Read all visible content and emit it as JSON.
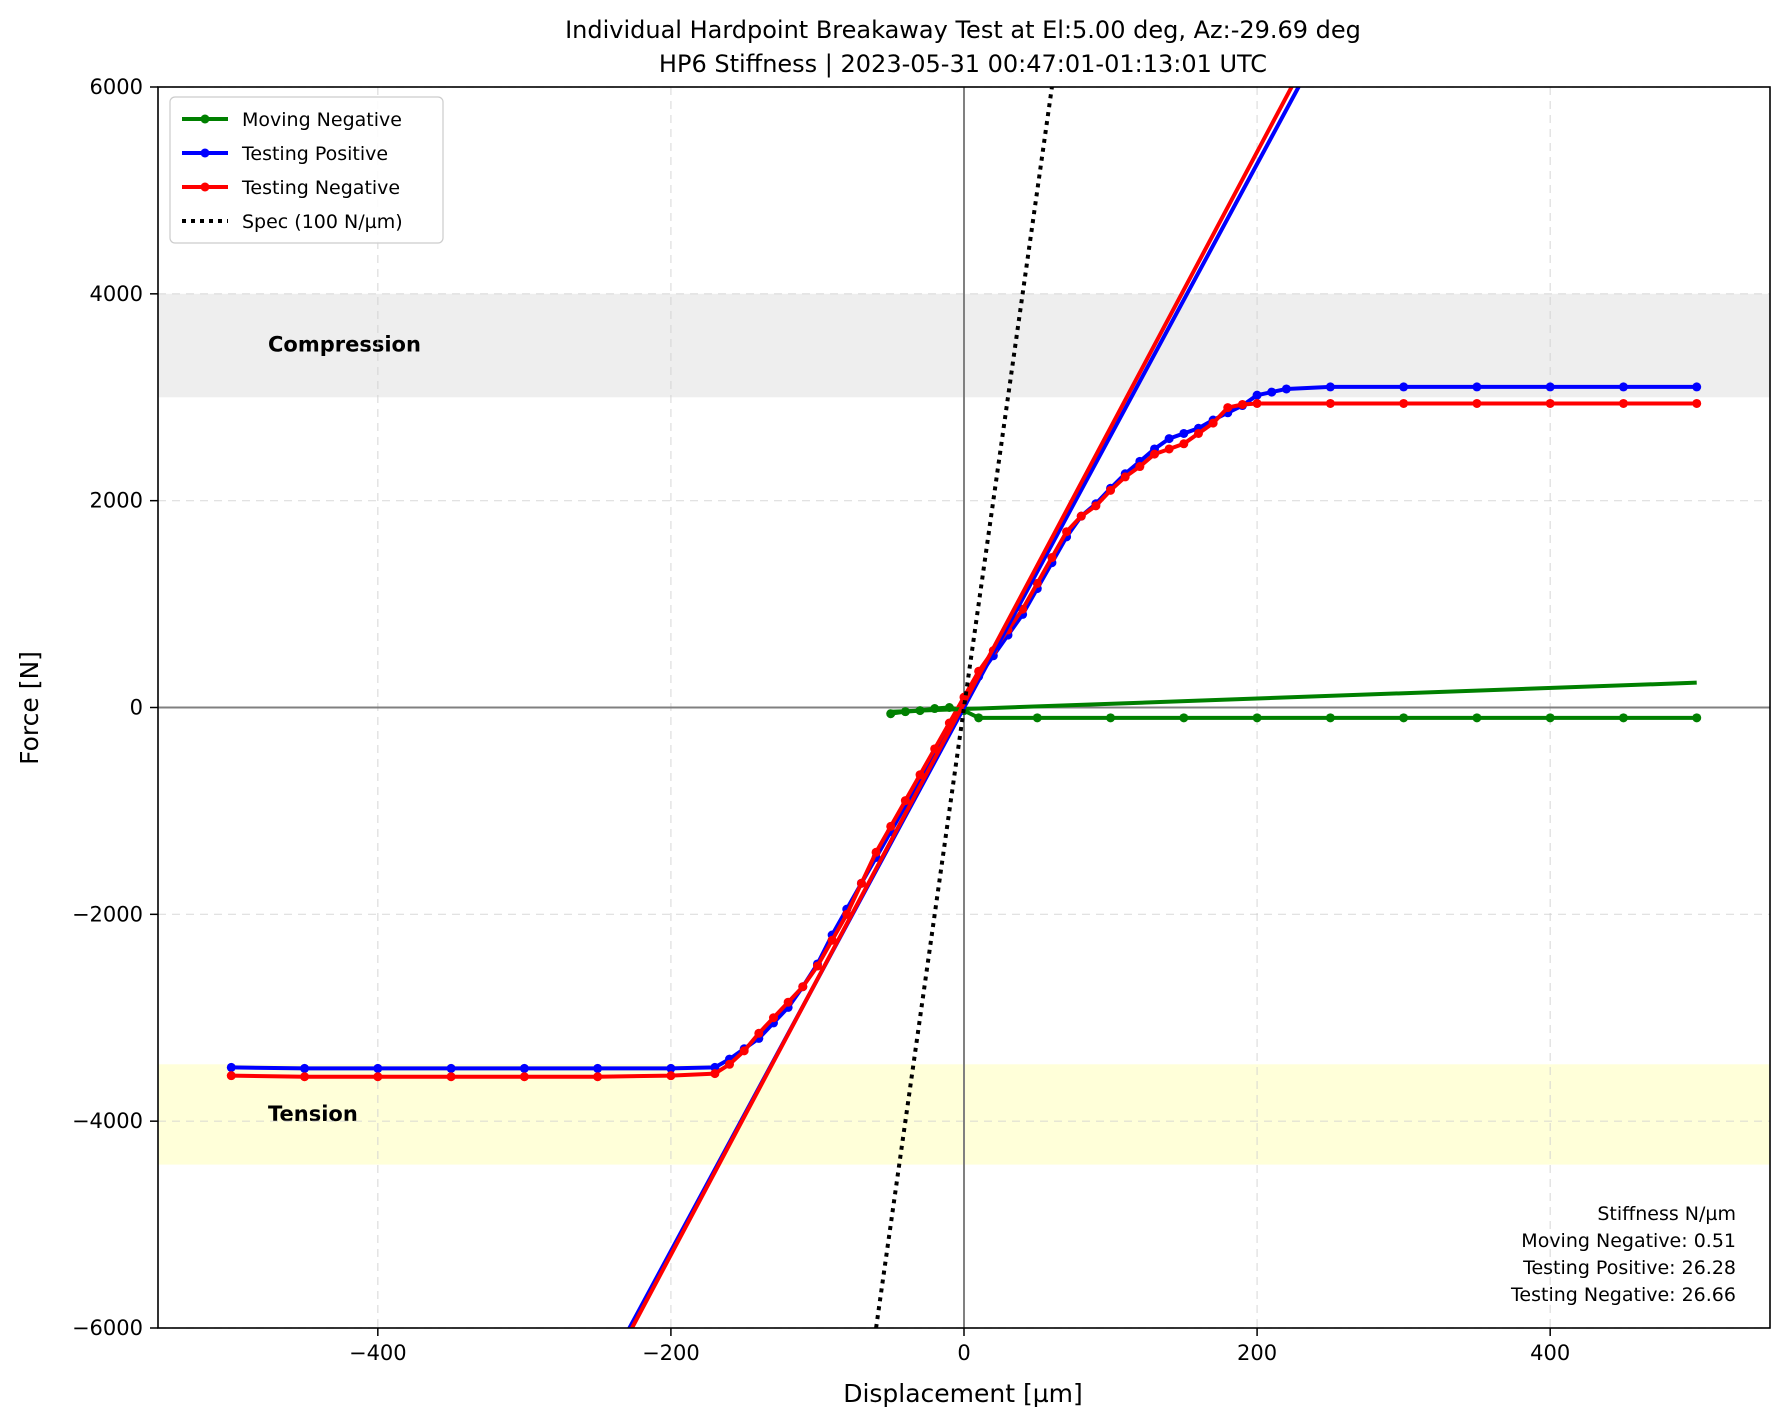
{
  "chart_data": {
    "type": "line",
    "title": "Individual Hardpoint Breakaway Test at El:5.00 deg, Az:-29.69 deg",
    "subtitle": "HP6 Stiffness | 2023-05-31 00:47:01-01:13:01 UTC",
    "xlabel": "Displacement [µm]",
    "ylabel": "Force [N]",
    "xlim": [
      -550,
      550
    ],
    "ylim": [
      -6000,
      6000
    ],
    "xticks": [
      -400,
      -200,
      0,
      200,
      400
    ],
    "yticks": [
      -6000,
      -4000,
      -2000,
      0,
      2000,
      4000,
      6000
    ],
    "grid": true,
    "legend_position": "top-left",
    "bands": [
      {
        "label": "Compression",
        "y0": 3000,
        "y1": 4000,
        "color": "#e8e8e8"
      },
      {
        "label": "Tension",
        "y0": -4420,
        "y1": -3450,
        "color": "#ffffcc"
      }
    ],
    "series": [
      {
        "name": "Moving Negative",
        "color": "#008000",
        "x": [
          -50,
          -40,
          -30,
          -20,
          -10,
          0,
          10,
          50,
          100,
          150,
          200,
          250,
          300,
          350,
          400,
          450,
          500
        ],
        "y": [
          -60,
          -40,
          -30,
          -10,
          0,
          -30,
          -100,
          -100,
          -100,
          -100,
          -100,
          -100,
          -100,
          -100,
          -100,
          -100,
          -100
        ],
        "fit_label": "Moving Negative: 0.51",
        "fit_slope": 0.51,
        "fit_intercept": -15
      },
      {
        "name": "Testing Positive",
        "color": "#0000ff",
        "x": [
          -500,
          -450,
          -400,
          -350,
          -300,
          -250,
          -200,
          -170,
          -160,
          -150,
          -140,
          -130,
          -120,
          -110,
          -100,
          -90,
          -80,
          -70,
          -60,
          -50,
          -40,
          -30,
          -20,
          -10,
          0,
          10,
          20,
          30,
          40,
          50,
          60,
          70,
          80,
          90,
          100,
          110,
          120,
          130,
          140,
          150,
          160,
          170,
          180,
          190,
          200,
          210,
          220,
          250,
          300,
          350,
          400,
          450,
          500
        ],
        "y": [
          -3480,
          -3490,
          -3490,
          -3490,
          -3490,
          -3490,
          -3490,
          -3480,
          -3400,
          -3300,
          -3200,
          -3050,
          -2900,
          -2700,
          -2480,
          -2200,
          -1950,
          -1700,
          -1450,
          -1200,
          -950,
          -700,
          -450,
          -200,
          50,
          300,
          500,
          700,
          900,
          1150,
          1400,
          1650,
          1850,
          1970,
          2120,
          2260,
          2380,
          2500,
          2600,
          2650,
          2700,
          2780,
          2850,
          2920,
          3020,
          3050,
          3080,
          3100,
          3100,
          3100,
          3100,
          3100,
          3100
        ],
        "fit_label": "Testing Positive: 26.28",
        "fit_slope": 26.28,
        "fit_intercept": 0
      },
      {
        "name": "Testing Negative",
        "color": "#ff0000",
        "x": [
          -500,
          -450,
          -400,
          -350,
          -300,
          -250,
          -200,
          -170,
          -160,
          -150,
          -140,
          -130,
          -120,
          -110,
          -100,
          -90,
          -80,
          -70,
          -60,
          -50,
          -40,
          -30,
          -20,
          -10,
          0,
          10,
          20,
          30,
          40,
          50,
          60,
          70,
          80,
          90,
          100,
          110,
          120,
          130,
          140,
          150,
          160,
          170,
          180,
          190,
          200,
          250,
          300,
          350,
          400,
          450,
          500
        ],
        "y": [
          -3560,
          -3570,
          -3570,
          -3570,
          -3570,
          -3570,
          -3560,
          -3540,
          -3450,
          -3320,
          -3150,
          -3000,
          -2850,
          -2700,
          -2500,
          -2250,
          -2000,
          -1700,
          -1400,
          -1150,
          -900,
          -650,
          -400,
          -150,
          100,
          350,
          550,
          750,
          950,
          1200,
          1450,
          1700,
          1850,
          1950,
          2100,
          2230,
          2330,
          2450,
          2500,
          2550,
          2650,
          2750,
          2900,
          2930,
          2940,
          2940,
          2940,
          2940,
          2940,
          2940,
          2940
        ],
        "fit_label": "Testing Negative: 26.66",
        "fit_slope": 26.66,
        "fit_intercept": 40
      }
    ],
    "spec": {
      "name": "Spec (100 N/µm)",
      "slope": 100,
      "color": "#000000"
    },
    "stats_title": "Stiffness N/µm",
    "stats": [
      "Moving Negative: 0.51",
      "Testing Positive: 26.28",
      "Testing Negative: 26.66"
    ]
  }
}
